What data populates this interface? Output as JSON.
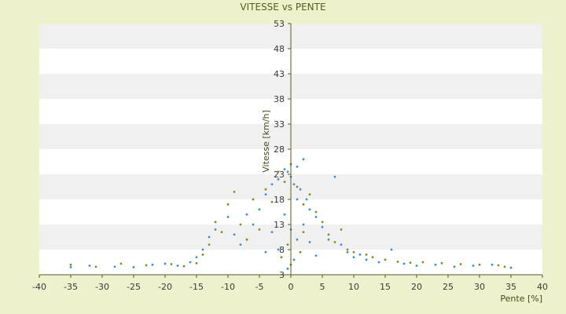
{
  "chart_data": {
    "type": "scatter",
    "title": "VITESSE vs PENTE",
    "xlabel": "Pente [%]",
    "ylabel": "Vitesse [km/h]",
    "xlim": [
      -40,
      40
    ],
    "ylim": [
      3,
      53
    ],
    "x_ticks": [
      -40,
      -35,
      -30,
      -25,
      -20,
      -15,
      -10,
      -5,
      0,
      5,
      10,
      15,
      20,
      25,
      30,
      35,
      40
    ],
    "y_ticks": [
      3,
      8,
      13,
      18,
      23,
      28,
      33,
      38,
      43,
      48,
      53
    ],
    "grid": "horizontal bands",
    "y_axis_position": "x=0",
    "colors": {
      "background": "#eef2cc",
      "plot_band_light": "#ffffff",
      "plot_band_dark": "#f0f0f0",
      "series_blue": "#3a8fd6",
      "series_olive": "#8a8a14",
      "axis": "#5b5b1a"
    },
    "series": [
      {
        "color": "#3a8fd6",
        "marker": "dot",
        "points": [
          [
            -35,
            4.5
          ],
          [
            -32,
            4.8
          ],
          [
            -28,
            4.6
          ],
          [
            -25,
            4.5
          ],
          [
            -22,
            5.0
          ],
          [
            -20,
            5.2
          ],
          [
            -18,
            4.8
          ],
          [
            -16,
            5.5
          ],
          [
            -15,
            6.5
          ],
          [
            -14,
            8.0
          ],
          [
            -13,
            10.5
          ],
          [
            -12,
            12.0
          ],
          [
            -10,
            14.5
          ],
          [
            -9,
            11.0
          ],
          [
            -8,
            9.0
          ],
          [
            -7,
            15.0
          ],
          [
            -6,
            13.0
          ],
          [
            -5,
            16.0
          ],
          [
            -4,
            19.0
          ],
          [
            -3,
            21.0
          ],
          [
            -2,
            22.0
          ],
          [
            -1,
            24.0
          ],
          [
            -0.5,
            23.5
          ],
          [
            0,
            22.5
          ],
          [
            0.5,
            21.0
          ],
          [
            1,
            24.5
          ],
          [
            1.5,
            20.0
          ],
          [
            2,
            26.0
          ],
          [
            2.5,
            18.0
          ],
          [
            3,
            16.0
          ],
          [
            4,
            14.5
          ],
          [
            5,
            12.5
          ],
          [
            6,
            10.0
          ],
          [
            7,
            22.5
          ],
          [
            8,
            9.0
          ],
          [
            9,
            7.5
          ],
          [
            10,
            6.5
          ],
          [
            11,
            7.0
          ],
          [
            12,
            6.0
          ],
          [
            14,
            5.5
          ],
          [
            16,
            8.0
          ],
          [
            18,
            5.2
          ],
          [
            20,
            4.8
          ],
          [
            23,
            5.0
          ],
          [
            26,
            4.6
          ],
          [
            29,
            4.8
          ],
          [
            32,
            5.0
          ],
          [
            35,
            4.4
          ],
          [
            -1,
            15.0
          ],
          [
            0,
            12.0
          ],
          [
            1,
            10.0
          ],
          [
            -2,
            8.0
          ],
          [
            0.5,
            6.0
          ],
          [
            -0.5,
            4.2
          ],
          [
            2,
            13.0
          ],
          [
            3,
            9.5
          ],
          [
            -3,
            11.5
          ],
          [
            -4,
            7.5
          ],
          [
            4,
            6.8
          ],
          [
            1,
            18.0
          ]
        ]
      },
      {
        "color": "#8a8a14",
        "marker": "dot",
        "points": [
          [
            -35,
            5.0
          ],
          [
            -31,
            4.6
          ],
          [
            -27,
            5.2
          ],
          [
            -23,
            4.9
          ],
          [
            -19,
            5.1
          ],
          [
            -17,
            4.7
          ],
          [
            -15,
            5.3
          ],
          [
            -14,
            7.0
          ],
          [
            -13,
            9.0
          ],
          [
            -12,
            13.5
          ],
          [
            -11,
            11.5
          ],
          [
            -10,
            17.0
          ],
          [
            -9,
            19.5
          ],
          [
            -8,
            13.0
          ],
          [
            -7,
            10.0
          ],
          [
            -6,
            18.0
          ],
          [
            -5,
            12.0
          ],
          [
            -4,
            20.0
          ],
          [
            -3,
            17.5
          ],
          [
            -2,
            23.5
          ],
          [
            -1,
            21.5
          ],
          [
            0,
            25.0
          ],
          [
            1,
            20.5
          ],
          [
            2,
            17.0
          ],
          [
            3,
            19.0
          ],
          [
            4,
            15.5
          ],
          [
            5,
            13.5
          ],
          [
            6,
            11.0
          ],
          [
            7,
            9.5
          ],
          [
            8,
            12.0
          ],
          [
            9,
            8.0
          ],
          [
            10,
            7.5
          ],
          [
            12,
            7.0
          ],
          [
            13,
            6.5
          ],
          [
            15,
            6.0
          ],
          [
            17,
            5.6
          ],
          [
            19,
            5.4
          ],
          [
            21,
            5.5
          ],
          [
            24,
            5.3
          ],
          [
            27,
            5.1
          ],
          [
            30,
            5.0
          ],
          [
            33,
            4.9
          ],
          [
            34,
            4.6
          ],
          [
            -0.5,
            9.0
          ],
          [
            1.5,
            7.5
          ],
          [
            -1.5,
            6.5
          ],
          [
            0,
            5.0
          ],
          [
            2,
            11.5
          ]
        ]
      }
    ]
  }
}
